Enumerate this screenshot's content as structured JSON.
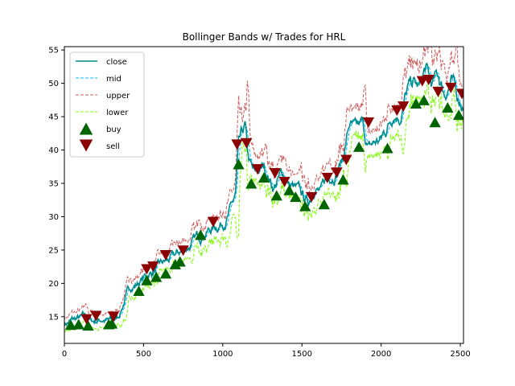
{
  "chart_data": {
    "type": "line",
    "title": "Bollinger Bands w/ Trades for HRL",
    "xlabel": "",
    "ylabel": "",
    "xlim": [
      0,
      2520
    ],
    "ylim": [
      11,
      55.5
    ],
    "xticks": [
      0,
      500,
      1000,
      1500,
      2000,
      2500
    ],
    "yticks": [
      15,
      20,
      25,
      30,
      35,
      40,
      45,
      50,
      55
    ],
    "grid": false,
    "legend_position": "top-left",
    "band_half_width": 0.9,
    "price_anchors": {
      "x": [
        0,
        60,
        120,
        180,
        240,
        300,
        340,
        380,
        420,
        460,
        500,
        560,
        620,
        700,
        760,
        820,
        880,
        940,
        1000,
        1040,
        1080,
        1100,
        1140,
        1160,
        1180,
        1200,
        1260,
        1320,
        1380,
        1420,
        1460,
        1500,
        1540,
        1580,
        1620,
        1660,
        1720,
        1760,
        1800,
        1840,
        1880,
        1920,
        1960,
        2000,
        2040,
        2080,
        2120,
        2160,
        2200,
        2240,
        2280,
        2320,
        2360,
        2400,
        2440,
        2480,
        2520
      ],
      "y": [
        14.0,
        14.5,
        14.8,
        14.3,
        14.7,
        14.2,
        15.0,
        17.5,
        19.5,
        20.0,
        20.8,
        21.8,
        22.8,
        24.0,
        25.2,
        26.3,
        27.8,
        28.3,
        29.3,
        30.5,
        33.0,
        40.0,
        43.0,
        38.5,
        37.0,
        36.0,
        37.5,
        34.5,
        36.5,
        34.8,
        34.0,
        33.0,
        32.0,
        35.0,
        33.5,
        36.0,
        37.0,
        39.0,
        44.0,
        42.5,
        43.5,
        40.0,
        41.0,
        41.5,
        43.5,
        46.0,
        45.5,
        48.5,
        50.0,
        49.0,
        52.0,
        49.5,
        51.0,
        48.5,
        50.5,
        48.0,
        47.0
      ]
    },
    "series": [
      {
        "name": "close",
        "color": "#008b8b",
        "style": "solid"
      },
      {
        "name": "mid",
        "color": "#00bfff",
        "style": "dashed"
      },
      {
        "name": "upper",
        "color": "#cd5c5c",
        "style": "dashed"
      },
      {
        "name": "lower",
        "color": "#7cfc00",
        "style": "dashed"
      }
    ],
    "buy_markers": {
      "name": "buy",
      "color": "#006400",
      "x": [
        40,
        90,
        150,
        280,
        300,
        470,
        520,
        580,
        640,
        700,
        730,
        860,
        1100,
        1180,
        1260,
        1340,
        1420,
        1460,
        1520,
        1640,
        1760,
        1860,
        2040,
        2220,
        2270,
        2340,
        2420,
        2490
      ],
      "y": [
        13.8,
        13.9,
        13.7,
        13.9,
        14.0,
        18.9,
        20.5,
        21.0,
        21.5,
        22.9,
        23.3,
        27.3,
        37.9,
        35.0,
        35.9,
        33.2,
        34.0,
        33.0,
        31.6,
        31.9,
        35.6,
        40.5,
        40.3,
        47.0,
        47.5,
        44.2,
        46.4,
        45.3
      ]
    },
    "sell_markers": {
      "name": "sell",
      "color": "#8b0000",
      "x": [
        140,
        200,
        310,
        520,
        560,
        640,
        750,
        940,
        1090,
        1150,
        1220,
        1330,
        1390,
        1560,
        1660,
        1720,
        1780,
        1920,
        2100,
        2140,
        2260,
        2300,
        2360,
        2440,
        2510
      ],
      "y": [
        14.6,
        15.1,
        15.0,
        22.1,
        22.5,
        24.2,
        24.9,
        29.2,
        40.8,
        41.0,
        37.1,
        36.5,
        35.2,
        32.9,
        35.8,
        36.6,
        38.5,
        44.1,
        45.9,
        46.5,
        50.3,
        50.5,
        48.7,
        49.3,
        48.4
      ]
    }
  },
  "legend": {
    "items": [
      {
        "label": "close",
        "color": "#008b8b",
        "kind": "line-solid"
      },
      {
        "label": "mid",
        "color": "#00bfff",
        "kind": "line-dashed"
      },
      {
        "label": "upper",
        "color": "#cd5c5c",
        "kind": "line-dashed"
      },
      {
        "label": "lower",
        "color": "#7cfc00",
        "kind": "line-dashed"
      },
      {
        "label": "buy",
        "color": "#006400",
        "kind": "triangle-up"
      },
      {
        "label": "sell",
        "color": "#8b0000",
        "kind": "triangle-down"
      }
    ]
  }
}
